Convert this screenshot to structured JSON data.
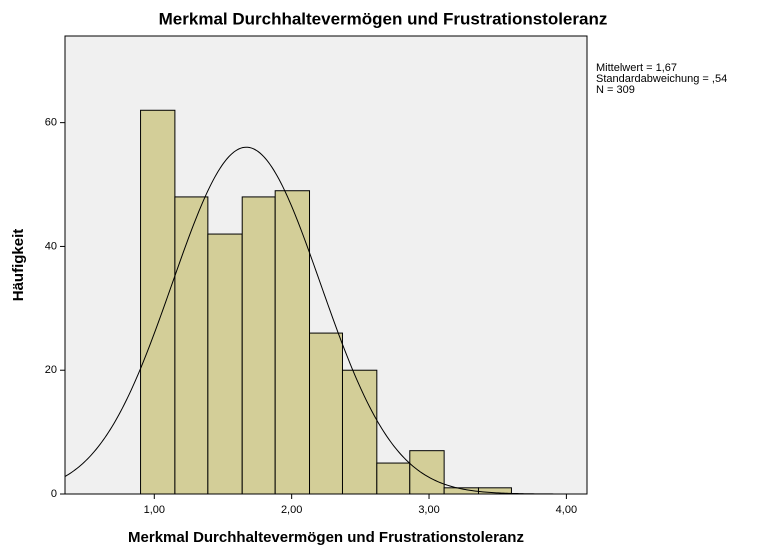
{
  "chart_data": {
    "type": "histogram",
    "title": "Merkmal Durchhaltevermögen und Frustrationstoleranz",
    "xlabel": "Merkmal Durchhaltevermögen und Frustrationstoleranz",
    "ylabel": "Häufigkeit",
    "bins": [
      0.9,
      1.15,
      1.39,
      1.64,
      1.88,
      2.13,
      2.37,
      2.62,
      2.86,
      3.11,
      3.36,
      3.6
    ],
    "values": [
      62,
      48,
      42,
      48,
      49,
      26,
      20,
      5,
      7,
      1,
      1
    ],
    "color": "#d3ce98",
    "xlim": [
      0.35,
      4.15
    ],
    "ylim": [
      0,
      74
    ],
    "xticks": [
      {
        "value": 1,
        "label": "1,00"
      },
      {
        "value": 2,
        "label": "2,00"
      },
      {
        "value": 3,
        "label": "3,00"
      },
      {
        "value": 4,
        "label": "4,00"
      }
    ],
    "yticks": [
      0,
      20,
      40,
      60
    ],
    "normal": {
      "mean": 1.67,
      "sd": 0.54,
      "n": 309
    },
    "stats_labels": [
      "Mittelwert = 1,67",
      "Standardabweichung = ,54",
      "N = 309"
    ]
  }
}
